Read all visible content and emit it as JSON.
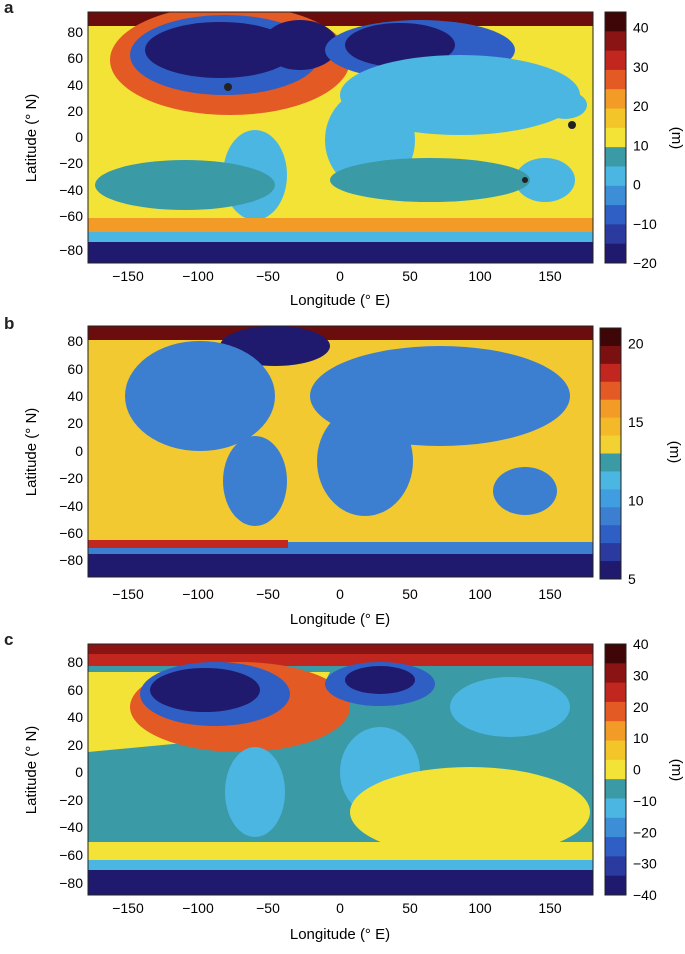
{
  "panels": [
    {
      "id": "a",
      "letter": "a",
      "ylabel": "Latitude (° N)",
      "xlabel": "Longitude (° E)",
      "colorbar_unit": "(m)",
      "colorbar_ticks": [
        "40",
        "30",
        "20",
        "10",
        "0",
        "−10",
        "−20"
      ],
      "colorbar_range": [
        -20,
        44
      ],
      "palette": [
        "#1f1a6e",
        "#2a3a9e",
        "#2f5fc4",
        "#3c8fd6",
        "#4cb6e3",
        "#3a9aa6",
        "#f2e336",
        "#f4c529",
        "#f29b26",
        "#e45a24",
        "#c2271f",
        "#8a1414",
        "#3e0606"
      ]
    },
    {
      "id": "b",
      "letter": "b",
      "ylabel": "Latitude (° N)",
      "xlabel": "Longitude (° E)",
      "colorbar_unit": "(m)",
      "colorbar_ticks": [
        "20",
        "15",
        "10",
        "5"
      ],
      "colorbar_range": [
        5,
        21
      ],
      "palette": [
        "#1f1a6e",
        "#2a3a9e",
        "#2f5fc4",
        "#3c7fd0",
        "#3f9de0",
        "#4cb6e3",
        "#3a9aa6",
        "#f2d232",
        "#f4b929",
        "#f29b26",
        "#e45a24",
        "#c2271f",
        "#7a1010",
        "#3e0606"
      ]
    },
    {
      "id": "c",
      "letter": "c",
      "ylabel": "Latitude (° N)",
      "xlabel": "Longitude (° E)",
      "colorbar_unit": "(m)",
      "colorbar_ticks": [
        "40",
        "30",
        "20",
        "10",
        "0",
        "−10",
        "−20",
        "−30",
        "−40"
      ],
      "colorbar_range": [
        -40,
        40
      ],
      "palette": [
        "#1f1a6e",
        "#2a3a9e",
        "#2f5fc4",
        "#3c8fd6",
        "#4cb6e3",
        "#3a9aa6",
        "#f2e336",
        "#f4c529",
        "#f29b26",
        "#e45a24",
        "#c2271f",
        "#8a1414",
        "#3e0606"
      ]
    }
  ],
  "lat_ticks": [
    "80",
    "60",
    "40",
    "20",
    "0",
    "−20",
    "−40",
    "−60",
    "−80"
  ],
  "lon_ticks": [
    "−150",
    "−100",
    "−50",
    "0",
    "50",
    "100",
    "150"
  ],
  "chart_data": [
    {
      "type": "heatmap",
      "panel": "a",
      "xlabel": "Longitude (° E)",
      "ylabel": "Latitude (° N)",
      "xlim": [
        -180,
        180
      ],
      "ylim": [
        -90,
        90
      ],
      "colorbar": {
        "label": "(m)",
        "range": [
          -20,
          44
        ],
        "ticks": [
          40,
          30,
          20,
          10,
          0,
          -10,
          -20
        ]
      }
    },
    {
      "type": "heatmap",
      "panel": "b",
      "xlabel": "Longitude (° E)",
      "ylabel": "Latitude (° N)",
      "xlim": [
        -180,
        180
      ],
      "ylim": [
        -90,
        90
      ],
      "colorbar": {
        "label": "(m)",
        "range": [
          5,
          21
        ],
        "ticks": [
          20,
          15,
          10,
          5
        ]
      }
    },
    {
      "type": "heatmap",
      "panel": "c",
      "xlabel": "Longitude (° E)",
      "ylabel": "Latitude (° N)",
      "xlim": [
        -180,
        180
      ],
      "ylim": [
        -90,
        90
      ],
      "colorbar": {
        "label": "(m)",
        "range": [
          -40,
          40
        ],
        "ticks": [
          40,
          30,
          20,
          10,
          0,
          -10,
          -20,
          -30,
          -40
        ]
      }
    }
  ]
}
